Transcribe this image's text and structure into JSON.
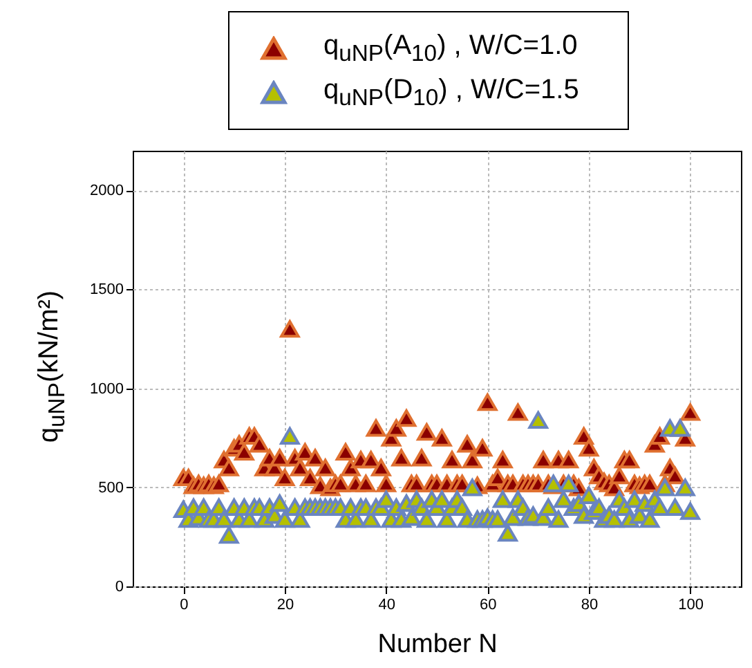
{
  "chart_data": {
    "type": "scatter",
    "xlabel": "Number N",
    "ylabel": "q$_{uNP}$(kN/m²)",
    "x": [
      0,
      1,
      2,
      3,
      4,
      5,
      6,
      7,
      8,
      9,
      10,
      11,
      12,
      13,
      14,
      15,
      16,
      17,
      18,
      19,
      20,
      21,
      22,
      23,
      24,
      25,
      26,
      27,
      28,
      29,
      30,
      31,
      32,
      33,
      34,
      35,
      36,
      37,
      38,
      39,
      40,
      41,
      42,
      43,
      44,
      45,
      46,
      47,
      48,
      49,
      50,
      51,
      52,
      53,
      54,
      55,
      56,
      57,
      58,
      59,
      60,
      61,
      62,
      63,
      64,
      65,
      66,
      67,
      68,
      69,
      70,
      71,
      72,
      73,
      74,
      75,
      76,
      77,
      78,
      79,
      80,
      81,
      82,
      83,
      84,
      85,
      86,
      87,
      88,
      89,
      90,
      91,
      92,
      93,
      94,
      95,
      96,
      97,
      98,
      99,
      100
    ],
    "series": [
      {
        "name": "q$_{uNP}$(A$_{10}$) , W/C=1.0",
        "color": "#8b0000",
        "values": [
          550,
          550,
          510,
          520,
          510,
          520,
          510,
          520,
          640,
          600,
          700,
          720,
          680,
          760,
          760,
          720,
          600,
          650,
          600,
          650,
          550,
          1300,
          650,
          600,
          680,
          550,
          650,
          510,
          600,
          500,
          520,
          520,
          680,
          600,
          520,
          640,
          520,
          640,
          800,
          600,
          520,
          750,
          800,
          650,
          850,
          520,
          520,
          650,
          780,
          520,
          520,
          750,
          520,
          640,
          520,
          520,
          720,
          640,
          510,
          700,
          930,
          520,
          550,
          640,
          520,
          520,
          880,
          520,
          520,
          520,
          520,
          640,
          520,
          510,
          640,
          520,
          640,
          520,
          500,
          760,
          700,
          600,
          560,
          530,
          520,
          500,
          560,
          640,
          640,
          520,
          510,
          520,
          520,
          720,
          760,
          520,
          600,
          560,
          800,
          750,
          880
        ]
      },
      {
        "name": "q$_{uNP}$(D$_{10}$) , W/C=1.5",
        "color": "#b5c000",
        "values": [
          390,
          340,
          400,
          350,
          400,
          340,
          340,
          400,
          340,
          260,
          400,
          340,
          400,
          340,
          400,
          400,
          340,
          400,
          360,
          420,
          340,
          760,
          400,
          340,
          400,
          400,
          400,
          400,
          400,
          400,
          400,
          400,
          340,
          400,
          340,
          400,
          400,
          340,
          400,
          400,
          440,
          340,
          400,
          340,
          420,
          350,
          440,
          400,
          340,
          440,
          400,
          440,
          340,
          400,
          440,
          400,
          340,
          500,
          340,
          340,
          350,
          340,
          340,
          440,
          270,
          350,
          440,
          400,
          350,
          360,
          840,
          350,
          400,
          520,
          340,
          440,
          520,
          400,
          420,
          360,
          460,
          380,
          400,
          340,
          360,
          340,
          440,
          400,
          340,
          440,
          360,
          420,
          340,
          440,
          400,
          500,
          800,
          400,
          800,
          500,
          380
        ]
      }
    ],
    "xlim": [
      -10,
      110
    ],
    "xticks": [
      0,
      20,
      40,
      60,
      80,
      100
    ],
    "ylim": [
      0,
      2200
    ],
    "yticks": [
      0,
      500,
      1000,
      1500,
      2000
    ],
    "grid": true,
    "legend": "top",
    "marker": "triangle"
  }
}
